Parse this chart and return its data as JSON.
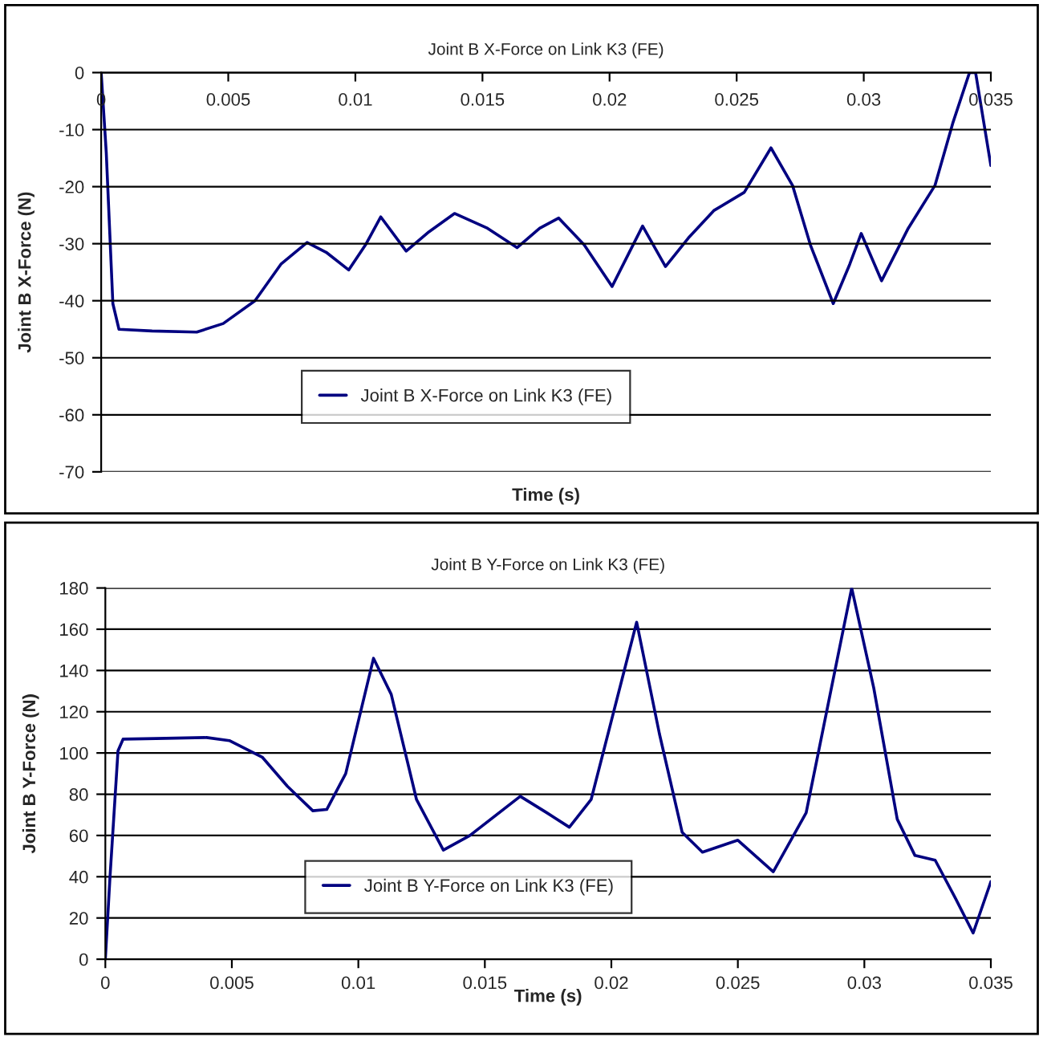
{
  "chart_data": [
    {
      "type": "line",
      "title": "Joint B X-Force on Link K3 (FE)",
      "xlabel": "Time (s)",
      "ylabel": "Joint B X-Force (N)",
      "xlim": [
        0,
        0.035
      ],
      "xticks": [
        0,
        0.005,
        0.01,
        0.015,
        0.02,
        0.025,
        0.03,
        0.035
      ],
      "ylim": [
        -70,
        0
      ],
      "yticks": [
        -70,
        -60,
        -50,
        -40,
        -30,
        -20,
        -10,
        0
      ],
      "grid": "y",
      "legend": "bottom",
      "marker": "none",
      "line_style": "solid",
      "series": [
        {
          "name": "Joint B X-Force on Link K3 (FE)",
          "color": "#000080",
          "x": [
            0,
            0.0002,
            0.00046,
            0.0007,
            0.002,
            0.00376,
            0.0048,
            0.00605,
            0.00707,
            0.0081,
            0.00885,
            0.00974,
            0.0104,
            0.011,
            0.012,
            0.0129,
            0.0139,
            0.0152,
            0.01636,
            0.01725,
            0.018,
            0.019,
            0.0201,
            0.0208,
            0.0213,
            0.0222,
            0.0231,
            0.0241,
            0.0253,
            0.02635,
            0.0272,
            0.0279,
            0.0288,
            0.02945,
            0.0299,
            0.0307,
            0.03175,
            0.0328,
            0.0335,
            0.03416,
            0.0344,
            0.035
          ],
          "values": [
            0,
            -14,
            -40.5,
            -45,
            -45.3,
            -45.5,
            -44,
            -40,
            -33.6,
            -29.8,
            -31.5,
            -34.6,
            -30.2,
            -25.3,
            -31.3,
            -27.9,
            -24.7,
            -27.3,
            -30.7,
            -27.3,
            -25.5,
            -30.2,
            -37.5,
            -31.3,
            -26.9,
            -34,
            -29,
            -24.2,
            -21,
            -13.2,
            -19.8,
            -30.2,
            -40.5,
            -33.6,
            -28.2,
            -36.5,
            -27.3,
            -19.8,
            -8.9,
            0,
            0,
            -16.3
          ]
        }
      ]
    },
    {
      "type": "line",
      "title": "Joint B Y-Force on Link K3 (FE)",
      "xlabel": "Time (s)",
      "ylabel": "Joint B Y-Force (N)",
      "xlim": [
        0,
        0.035
      ],
      "xticks": [
        0,
        0.005,
        0.01,
        0.015,
        0.02,
        0.025,
        0.03,
        0.035
      ],
      "ylim": [
        0,
        180
      ],
      "yticks": [
        0,
        20,
        40,
        60,
        80,
        100,
        120,
        140,
        160,
        180
      ],
      "grid": "y",
      "legend": "bottom",
      "marker": "none",
      "line_style": "solid",
      "series": [
        {
          "name": "Joint B Y-Force on Link K3 (FE)",
          "color": "#000080",
          "x": [
            0,
            0.00018,
            0.0005,
            0.0007,
            0.002,
            0.004,
            0.0049,
            0.0062,
            0.0072,
            0.0082,
            0.00875,
            0.0095,
            0.0106,
            0.0113,
            0.0123,
            0.01336,
            0.0144,
            0.0164,
            0.01745,
            0.01834,
            0.0192,
            0.021,
            0.0219,
            0.0228,
            0.0236,
            0.025,
            0.0264,
            0.0277,
            0.0287,
            0.0295,
            0.03037,
            0.0313,
            0.032,
            0.0328,
            0.0336,
            0.0343,
            0.035
          ],
          "values": [
            0,
            39,
            101,
            106.7,
            107,
            107.5,
            106,
            98,
            83.8,
            72,
            72.6,
            90,
            145.9,
            128.4,
            77.4,
            52.9,
            59.9,
            79,
            71,
            64,
            77.4,
            163.4,
            109.3,
            61.5,
            51.9,
            57.7,
            42.4,
            71,
            131.6,
            180,
            131.6,
            67.9,
            50.3,
            48,
            29.6,
            12.7,
            37.6
          ]
        }
      ]
    }
  ]
}
